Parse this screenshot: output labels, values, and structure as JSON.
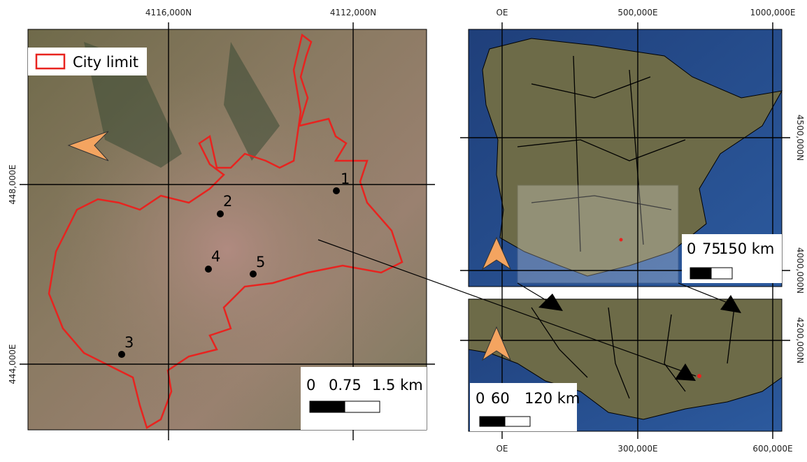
{
  "main_map": {
    "top_labels": [
      "4116,000N",
      "4112,000N"
    ],
    "left_labels": [
      "448,000E",
      "444,000E"
    ],
    "legend": "City limit",
    "points": [
      "1",
      "2",
      "3",
      "4",
      "5"
    ],
    "scale": [
      "0",
      "0.75",
      "1.5 km"
    ]
  },
  "spain_map": {
    "top_labels": [
      "OE",
      "500,000E",
      "1000,000E"
    ],
    "right_labels": [
      "4500,000N",
      "4000,000N"
    ],
    "scale": [
      "0",
      "75",
      "150 km"
    ]
  },
  "andalusia_map": {
    "bottom_labels": [
      "OE",
      "300,000E",
      "600,000E"
    ],
    "right_labels": [
      "4200,000N"
    ],
    "scale": [
      "0",
      "60",
      "120 km"
    ]
  }
}
